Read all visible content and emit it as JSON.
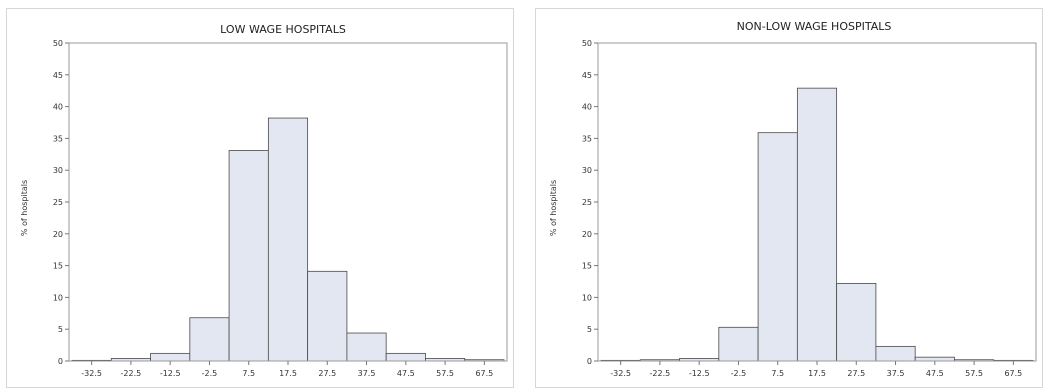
{
  "chart_data": [
    {
      "type": "bar",
      "title": "LOW WAGE HOSPITALS",
      "ylabel": "% of hospitals",
      "xlabel": "",
      "categories": [
        "-32.5",
        "-22.5",
        "-12.5",
        "-2.5",
        "7.5",
        "17.5",
        "27.5",
        "37.5",
        "47.5",
        "57.5",
        "67.5"
      ],
      "values": [
        0.1,
        0.4,
        1.2,
        6.8,
        33.1,
        38.2,
        14.1,
        4.4,
        1.2,
        0.4,
        0.2
      ],
      "ylim": [
        0,
        50
      ],
      "yticks": [
        0,
        5,
        10,
        15,
        20,
        25,
        30,
        35,
        40,
        45,
        50
      ],
      "grid": false,
      "bar_color": "#e3e7f1"
    },
    {
      "type": "bar",
      "title": "NON-LOW WAGE HOSPITALS",
      "ylabel": "% of hospitals",
      "xlabel": "",
      "categories": [
        "-32.5",
        "-22.5",
        "-12.5",
        "-2.5",
        "7.5",
        "17.5",
        "27.5",
        "37.5",
        "47.5",
        "57.5",
        "67.5"
      ],
      "values": [
        0.1,
        0.2,
        0.4,
        5.3,
        35.9,
        42.9,
        12.2,
        2.3,
        0.6,
        0.2,
        0.1
      ],
      "ylim": [
        0,
        50
      ],
      "yticks": [
        0,
        5,
        10,
        15,
        20,
        25,
        30,
        35,
        40,
        45,
        50
      ],
      "grid": false,
      "bar_color": "#e3e7f1"
    }
  ]
}
